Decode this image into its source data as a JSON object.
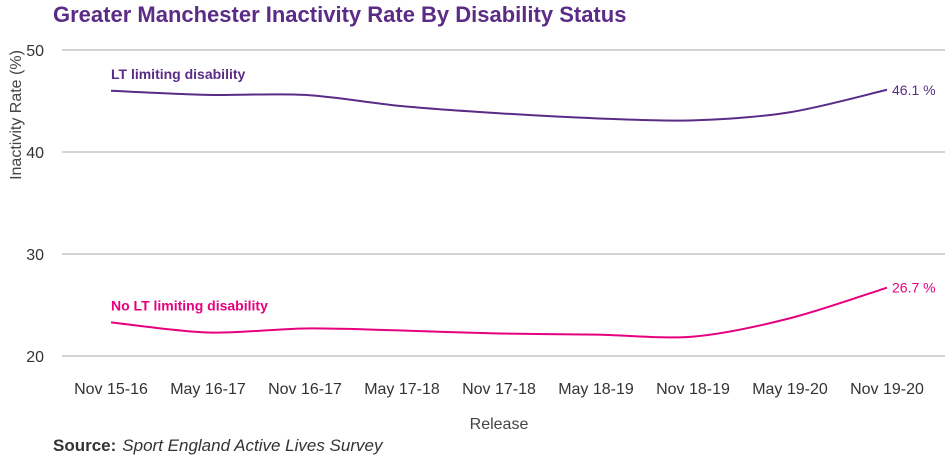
{
  "chart_data": {
    "type": "line",
    "title": "Greater Manchester Inactivity Rate By Disability Status",
    "xlabel": "Release",
    "ylabel": "Inactivity Rate (%)",
    "categories": [
      "Nov 15-16",
      "May 16-17",
      "Nov 16-17",
      "May 17-18",
      "Nov 17-18",
      "May 18-19",
      "Nov 18-19",
      "May 19-20",
      "Nov 19-20"
    ],
    "ylim": [
      20,
      50
    ],
    "yticks": [
      20,
      30,
      40,
      50
    ],
    "grid": true,
    "series": [
      {
        "name": "LT limiting disability",
        "color": "#5b2c86",
        "values": [
          46.0,
          45.6,
          45.6,
          44.5,
          43.8,
          43.3,
          43.1,
          43.9,
          46.1
        ],
        "end_label": "46.1 %"
      },
      {
        "name": "No LT limiting disability",
        "color": "#e6007e",
        "values": [
          23.3,
          22.3,
          22.7,
          22.5,
          22.2,
          22.1,
          21.9,
          23.7,
          26.7
        ],
        "end_label": "26.7 %"
      }
    ]
  },
  "source": {
    "label": "Source:",
    "text": "Sport England Active Lives Survey"
  }
}
